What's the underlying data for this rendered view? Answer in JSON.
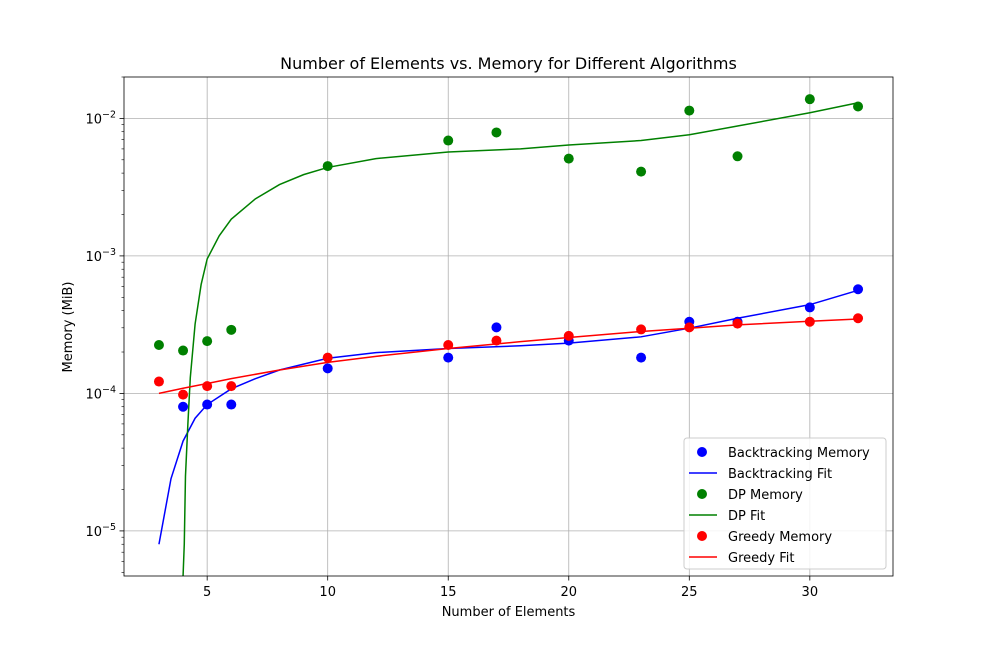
{
  "chart_data": {
    "type": "scatter",
    "title": "Number of Elements vs. Memory for Different Algorithms",
    "xlabel": "Number of Elements",
    "ylabel": "Memory (MiB)",
    "xlim": [
      1.55,
      33.45
    ],
    "ylim": [
      4.7e-06,
      0.02
    ],
    "yscale": "log",
    "grid": true,
    "legend_position": "bottom-right",
    "x_ticks": [
      5,
      10,
      15,
      20,
      25,
      30
    ],
    "x_tick_labels": [
      "5",
      "10",
      "15",
      "20",
      "25",
      "30"
    ],
    "y_ticks": [
      1e-05,
      0.0001,
      0.001,
      0.01
    ],
    "y_tick_labels": [
      {
        "base": "10",
        "exp": "−5"
      },
      {
        "base": "10",
        "exp": "−4"
      },
      {
        "base": "10",
        "exp": "−3"
      },
      {
        "base": "10",
        "exp": "−2"
      }
    ],
    "series": [
      {
        "name": "Backtracking Memory",
        "kind": "scatter",
        "color": "#0000ff",
        "x": [
          4,
          5,
          6,
          10,
          15,
          17,
          20,
          23,
          25,
          27,
          30,
          32
        ],
        "y": [
          8e-05,
          8.3e-05,
          8.3e-05,
          0.000152,
          0.000182,
          0.000302,
          0.000242,
          0.000182,
          0.000332,
          0.000332,
          0.000422,
          0.000572
        ]
      },
      {
        "name": "Backtracking Fit",
        "kind": "line",
        "color": "#0000ff",
        "x": [
          3,
          3.5,
          4,
          4.5,
          5,
          6,
          7,
          8,
          10,
          12,
          15,
          18,
          20,
          23,
          25,
          27,
          30,
          32
        ],
        "y": [
          8e-06,
          2.4e-05,
          4.5e-05,
          6.6e-05,
          8.3e-05,
          0.000108,
          0.000128,
          0.000148,
          0.00018,
          0.000198,
          0.000212,
          0.000222,
          0.000232,
          0.000258,
          0.000298,
          0.000352,
          0.000442,
          0.000562
        ]
      },
      {
        "name": "DP Memory",
        "kind": "scatter",
        "color": "#008000",
        "x": [
          3,
          4,
          5,
          6,
          10,
          15,
          17,
          20,
          23,
          25,
          27,
          30,
          32
        ],
        "y": [
          0.000225,
          0.000205,
          0.00024,
          0.00029,
          0.0045,
          0.0069,
          0.0079,
          0.0051,
          0.0041,
          0.0114,
          0.0053,
          0.0138,
          0.0122
        ]
      },
      {
        "name": "DP Fit",
        "kind": "line",
        "color": "#008000",
        "x": [
          4,
          4.05,
          4.1,
          4.2,
          4.3,
          4.5,
          4.75,
          5,
          5.5,
          6,
          7,
          8,
          9,
          10,
          12,
          15,
          18,
          20,
          23,
          25,
          27,
          30,
          32
        ],
        "y": [
          4.7e-06,
          8e-06,
          2.5e-05,
          6e-05,
          0.00013,
          0.00032,
          0.00062,
          0.00095,
          0.0014,
          0.00185,
          0.0026,
          0.0033,
          0.0039,
          0.0044,
          0.0051,
          0.0057,
          0.006,
          0.0064,
          0.0069,
          0.0076,
          0.0088,
          0.011,
          0.013
        ]
      },
      {
        "name": "Greedy Memory",
        "kind": "scatter",
        "color": "#ff0000",
        "x": [
          3,
          4,
          5,
          6,
          10,
          15,
          17,
          20,
          23,
          25,
          27,
          30,
          32
        ],
        "y": [
          0.000122,
          9.8e-05,
          0.000113,
          0.000113,
          0.000182,
          0.000225,
          0.000242,
          0.000262,
          0.000292,
          0.000302,
          0.000322,
          0.000332,
          0.000352
        ]
      },
      {
        "name": "Greedy Fit",
        "kind": "line",
        "color": "#ff0000",
        "x": [
          3,
          4,
          5,
          6,
          8,
          10,
          12,
          15,
          18,
          20,
          23,
          25,
          27,
          30,
          32
        ],
        "y": [
          0.0001,
          0.000109,
          0.000118,
          0.000128,
          0.000148,
          0.000168,
          0.000186,
          0.000212,
          0.000238,
          0.000255,
          0.000282,
          0.000298,
          0.000315,
          0.000335,
          0.000348
        ]
      }
    ]
  }
}
